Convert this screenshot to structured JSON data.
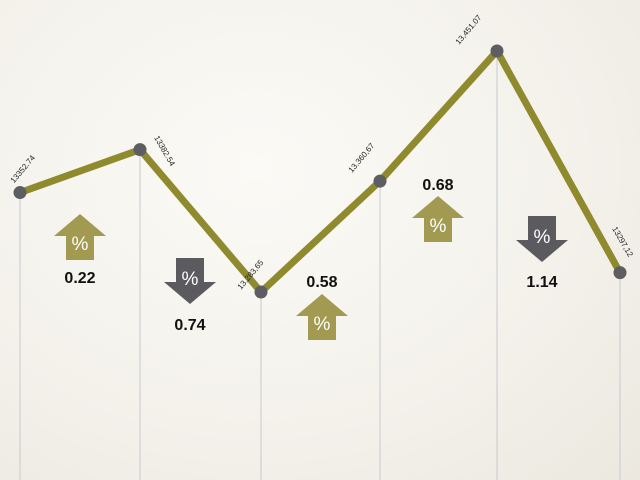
{
  "chart_data": {
    "type": "line",
    "title": "",
    "xlabel": "",
    "ylabel": "",
    "grid": "vertical-lines-at-points",
    "series": [
      {
        "values": [
          13352.74,
          13382.54,
          13283.65,
          13360.67,
          13451.07,
          13297.12
        ],
        "labels": [
          "13352.74",
          "13382.54",
          "13.283,65",
          "13.360,67",
          "13,451.07",
          "13297,12"
        ]
      }
    ],
    "changes": [
      {
        "value": "0.22",
        "direction": "up"
      },
      {
        "value": "0.74",
        "direction": "down"
      },
      {
        "value": "0.58",
        "direction": "up"
      },
      {
        "value": "0.68",
        "direction": "up"
      },
      {
        "value": "1.14",
        "direction": "down"
      }
    ],
    "percent_symbol": "%",
    "colors": {
      "line": "#8f8a2e",
      "marker": "#5d5d62",
      "up_arrow": "#a39a52",
      "down_arrow": "#5b5b5f",
      "gridline": "#c9c9cf"
    }
  }
}
